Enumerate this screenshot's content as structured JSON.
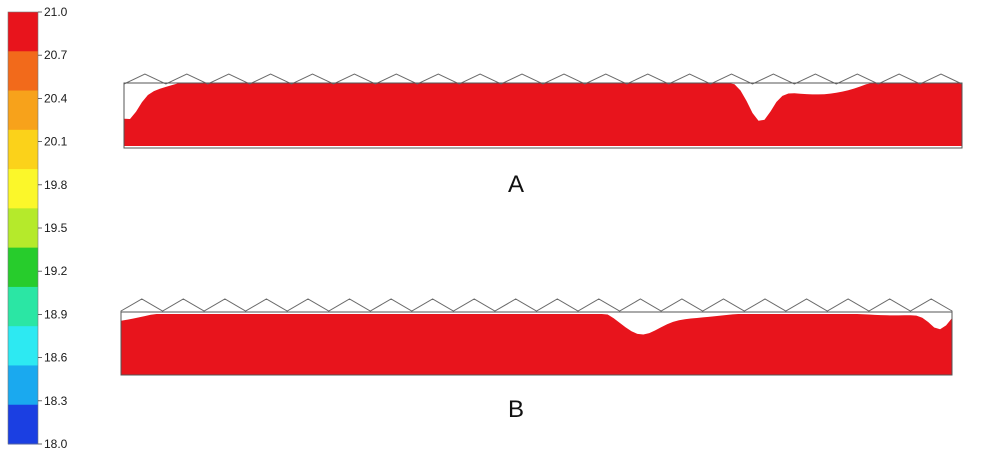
{
  "colorbar": {
    "ticks": [
      "21.0",
      "20.7",
      "20.4",
      "20.1",
      "19.8",
      "19.5",
      "19.2",
      "18.9",
      "18.6",
      "18.3",
      "18.0"
    ],
    "band_colors": [
      "#e8141c",
      "#f26a1b",
      "#f7a21b",
      "#fbd21a",
      "#fbf72a",
      "#b5ea2b",
      "#27cc2c",
      "#2be6a4",
      "#2de9f2",
      "#1aa9ef",
      "#1b3fe2"
    ]
  },
  "panels": [
    {
      "label": "A"
    },
    {
      "label": "B"
    }
  ]
}
